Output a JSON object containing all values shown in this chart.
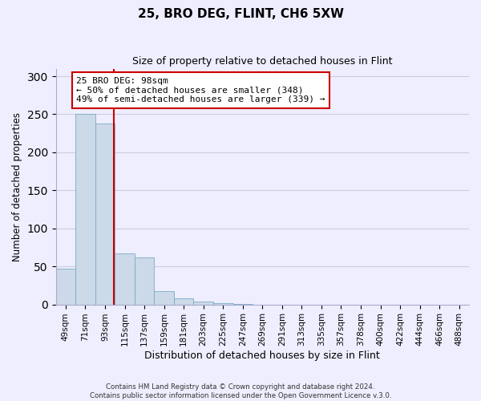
{
  "title": "25, BRO DEG, FLINT, CH6 5XW",
  "subtitle": "Size of property relative to detached houses in Flint",
  "xlabel": "Distribution of detached houses by size in Flint",
  "ylabel": "Number of detached properties",
  "bar_labels": [
    "49sqm",
    "71sqm",
    "93sqm",
    "115sqm",
    "137sqm",
    "159sqm",
    "181sqm",
    "203sqm",
    "225sqm",
    "247sqm",
    "269sqm",
    "291sqm",
    "313sqm",
    "335sqm",
    "357sqm",
    "378sqm",
    "400sqm",
    "422sqm",
    "444sqm",
    "466sqm",
    "488sqm"
  ],
  "bar_values": [
    47,
    250,
    238,
    67,
    62,
    18,
    8,
    4,
    2,
    1,
    0,
    0,
    0,
    0,
    0,
    0,
    0,
    0,
    0,
    0,
    0
  ],
  "bar_color": "#ccd9e8",
  "bar_edge_color": "#7aaac8",
  "vline_x_idx": 2,
  "vline_x_offset": 0.45,
  "vline_color": "#cc0000",
  "ylim": [
    0,
    310
  ],
  "yticks": [
    0,
    50,
    100,
    150,
    200,
    250,
    300
  ],
  "annotation_title": "25 BRO DEG: 98sqm",
  "annotation_line1": "← 50% of detached houses are smaller (348)",
  "annotation_line2": "49% of semi-detached houses are larger (339) →",
  "annotation_box_color": "#ffffff",
  "annotation_box_edge": "#cc0000",
  "footer_line1": "Contains HM Land Registry data © Crown copyright and database right 2024.",
  "footer_line2": "Contains public sector information licensed under the Open Government Licence v.3.0.",
  "background_color": "#eeeeff",
  "grid_color": "#ccccdd"
}
